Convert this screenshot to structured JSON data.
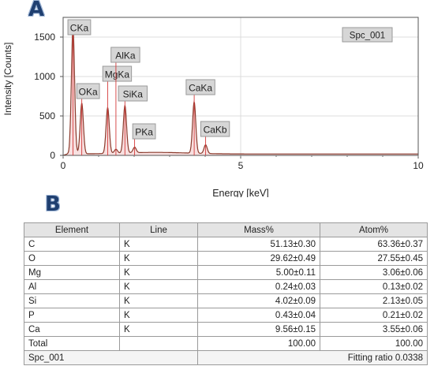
{
  "panel_labels": {
    "a": "A",
    "b": "B"
  },
  "chart_data": {
    "type": "line",
    "xlabel": "Energy [keV]",
    "ylabel": "Intensity [Counts]",
    "xlim": [
      0,
      10
    ],
    "ylim": [
      0,
      1750
    ],
    "x_ticks": [
      0,
      5,
      10
    ],
    "y_ticks": [
      0,
      500,
      1000,
      1500
    ],
    "grid": true,
    "legend_box": "Spc_001",
    "line_color": "#8b3a2c",
    "fill_color": "#f3c6c6",
    "peaks": [
      {
        "label": "CKa",
        "energy": 0.277,
        "intensity": 1600
      },
      {
        "label": "OKa",
        "energy": 0.525,
        "intensity": 640
      },
      {
        "label": "MgKa",
        "energy": 1.254,
        "intensity": 580
      },
      {
        "label": "AlKa",
        "energy": 1.487,
        "intensity": 50
      },
      {
        "label": "SiKa",
        "energy": 1.74,
        "intensity": 600
      },
      {
        "label": "PKa",
        "energy": 2.013,
        "intensity": 70
      },
      {
        "label": "CaKa",
        "energy": 3.691,
        "intensity": 650
      },
      {
        "label": "CaKb",
        "energy": 4.013,
        "intensity": 110
      }
    ]
  },
  "table": {
    "headers": [
      "Element",
      "Line",
      "Mass%",
      "Atom%"
    ],
    "rows": [
      [
        "C",
        "K",
        "51.13±0.30",
        "63.36±0.37"
      ],
      [
        "O",
        "K",
        "29.62±0.49",
        "27.55±0.45"
      ],
      [
        "Mg",
        "K",
        "5.00±0.11",
        "3.06±0.06"
      ],
      [
        "Al",
        "K",
        "0.24±0.03",
        "0.13±0.02"
      ],
      [
        "Si",
        "K",
        "4.02±0.09",
        "2.13±0.05"
      ],
      [
        "P",
        "K",
        "0.43±0.04",
        "0.21±0.02"
      ],
      [
        "Ca",
        "K",
        "9.56±0.15",
        "3.55±0.06"
      ],
      [
        "Total",
        "",
        "100.00",
        "100.00"
      ]
    ],
    "footer": {
      "left": "Spc_001",
      "right_label": "Fitting ratio",
      "right_value": "0.0338"
    }
  }
}
